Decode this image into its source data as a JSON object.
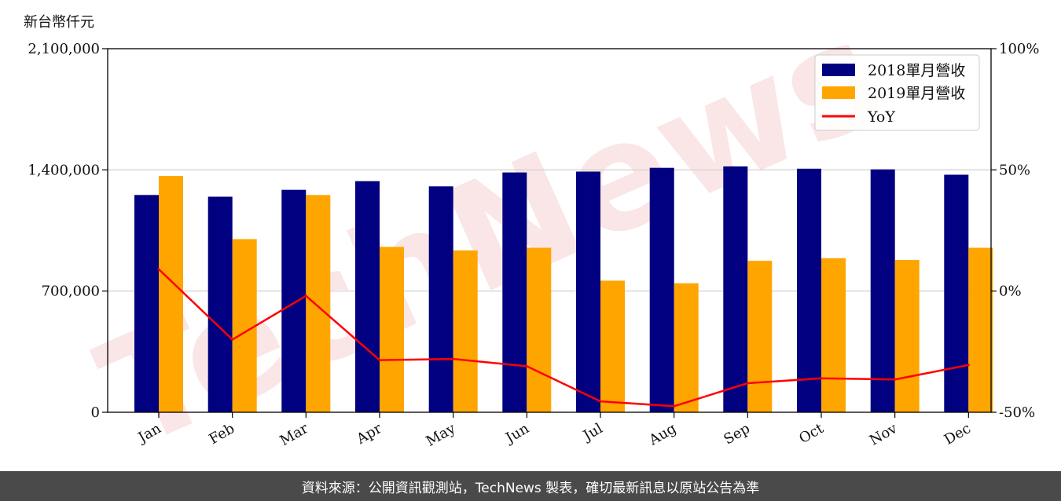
{
  "unit_label": "新台幣仟元",
  "footer_text": "資料來源：公開資訊觀測站，TechNews 製表，確切最新訊息以原站公告為準",
  "watermark": "TechNews",
  "colors": {
    "bar_2018": "#000080",
    "bar_2019": "#ffa500",
    "yoy_line": "#ff0000",
    "grid": "#cccccc",
    "footer_bg": "#4a4a4a",
    "watermark": "#f4c8c8"
  },
  "chart_data": {
    "type": "bar",
    "categories": [
      "Jan",
      "Feb",
      "Mar",
      "Apr",
      "May",
      "Jun",
      "Jul",
      "Aug",
      "Sep",
      "Oct",
      "Nov",
      "Dec"
    ],
    "series": [
      {
        "name": "2018單月營收",
        "axis": "left",
        "values": [
          1255000,
          1245000,
          1285000,
          1335000,
          1305000,
          1385000,
          1390000,
          1412000,
          1420000,
          1407000,
          1403000,
          1372000
        ]
      },
      {
        "name": "2019單月營收",
        "axis": "left",
        "values": [
          1365000,
          1000000,
          1255000,
          955000,
          935000,
          950000,
          760000,
          745000,
          875000,
          890000,
          880000,
          950000
        ]
      },
      {
        "name": "YoY",
        "type": "line",
        "axis": "right",
        "values": [
          9,
          -20,
          -2,
          -28.5,
          -28,
          -31,
          -45.5,
          -47.5,
          -38,
          -36,
          -36.5,
          -30.5
        ]
      }
    ],
    "y_left": {
      "min": 0,
      "max": 2100000,
      "ticks": [
        0,
        700000,
        1400000,
        2100000
      ],
      "tick_labels": [
        "0",
        "700,000",
        "1,400,000",
        "2,100,000"
      ]
    },
    "y_right": {
      "min": -50,
      "max": 100,
      "ticks": [
        -50,
        0,
        50,
        100
      ],
      "tick_labels": [
        "-50%",
        "0%",
        "50%",
        "100%"
      ]
    },
    "grid": "horizontal",
    "legend_position": "top-right"
  }
}
